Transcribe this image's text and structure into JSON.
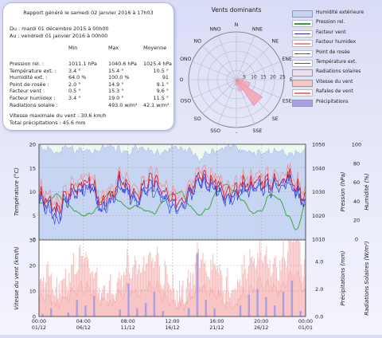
{
  "report": {
    "title": "Rapport généré le samedi 02 janvier 2016 à 17h03",
    "from": "Du : mardi 01 décembre 2015 à 00h00",
    "to": "Au : vendredi 01 janvier 2016 à 00h00",
    "columns": [
      "Min",
      "Max",
      "Moyenne"
    ],
    "rows": [
      {
        "label": "Pression rel. :",
        "min": "1011.1 hPa",
        "max": "1040.6 hPa",
        "avg": "1025.4 hPa"
      },
      {
        "label": "Température ext. :",
        "min": "3.4 °",
        "max": "15.4 °",
        "avg": "10.5 °"
      },
      {
        "label": "Humidité ext. :",
        "min": "64.0 %",
        "max": "100.0 %",
        "avg": "91"
      },
      {
        "label": "Point de rosée :",
        "min": "2.0 °",
        "max": "14.9 °",
        "avg": "9.1 °"
      },
      {
        "label": "Facteur vent :",
        "min": "0.5 °",
        "max": "15.3 °",
        "avg": "9.6 °"
      },
      {
        "label": "Facteur humidex :",
        "min": "3.4 °",
        "max": "19.0 °",
        "avg": "11.5 °"
      },
      {
        "label": "Radiations solaire :",
        "min": "",
        "max": "493.0 w/m²",
        "avg": "42.1 w/m²"
      }
    ],
    "wind_max": "Vitesse maximale du vent : 30.6 km/h",
    "rain_total": "Total précipitations : 45.6 mm"
  },
  "colors": {
    "humidity": "#b9c9ee",
    "pressure": "#33a033",
    "wind_factor": "#2a2ad8",
    "humidex": "#f08a8a",
    "dewpoint": "#3a4ef0",
    "temperature": "#d8202a",
    "solar": "#ece0ec",
    "wind_speed": "#f4b2b2",
    "gusts": "#f07a7a",
    "precip": "#aa9fe0",
    "rose": "#f4a8b6"
  },
  "wind_rose": {
    "title": "Vents dominants",
    "directions": [
      "N",
      "NNE",
      "NE",
      "ENE",
      "E",
      "ESE",
      "SE",
      "SSE",
      "S",
      "SSO",
      "SO",
      "OSO",
      "O",
      "ONO",
      "NO",
      "NNO"
    ],
    "rings": [
      "5",
      "10",
      "15",
      "20",
      "25"
    ],
    "dominant": "SE"
  },
  "legend": [
    {
      "label": "Humidité extérieure",
      "type": "fill",
      "color": "#c6d5f2"
    },
    {
      "label": "Pression rel.",
      "type": "line",
      "color": "#33a033"
    },
    {
      "label": "Facteur vent",
      "type": "line",
      "color": "#2a2ad8"
    },
    {
      "label": "Facteur humidex",
      "type": "line",
      "color": "#f08a8a"
    },
    {
      "label": "Point de rosée",
      "type": "line",
      "color": "#3a4ef0"
    },
    {
      "label": "Température ext.",
      "type": "line",
      "color": "#d8202a"
    },
    {
      "label": "Radiations solaires",
      "type": "fill",
      "color": "#ece0ec"
    },
    {
      "label": "Vitesse du vent",
      "type": "fill",
      "color": "#f8c4c4"
    },
    {
      "label": "Rafales de vent",
      "type": "line",
      "color": "#f07a7a"
    },
    {
      "label": "Précipitations",
      "type": "fill",
      "color": "#a99fe3"
    }
  ],
  "chart_data": [
    {
      "type": "line",
      "xlabels": [
        "01/12",
        "06/12",
        "11/12",
        "16/12",
        "21/12",
        "26/12",
        "01/01"
      ],
      "xlabels_top": [
        "00:00",
        "04:00",
        "08:00",
        "12:00",
        "16:00",
        "20:00",
        "00:00"
      ],
      "ylabel_left": "Température (°C)",
      "ylabel_right1": "Pression (hPa)",
      "ylabel_right2": "Humidité (%)",
      "ylim_temp": [
        0,
        20
      ],
      "yticks_temp": [
        "0",
        "5",
        "10",
        "15",
        "20"
      ],
      "ylim_pressure": [
        1010,
        1050
      ],
      "yticks_pressure": [
        "1010",
        "1020",
        "1030",
        "1040",
        "1050"
      ],
      "yticks_humidity": [
        "0",
        "20",
        "40",
        "60",
        "80",
        "100"
      ],
      "series": [
        {
          "name": "Température ext.",
          "values": [
            9.5,
            8,
            6,
            9,
            11,
            12,
            12,
            7,
            9,
            12.5,
            11,
            9,
            12,
            12.5,
            10,
            8,
            8.5,
            11,
            14,
            12.5,
            12,
            9.5,
            10,
            11.5,
            12,
            12.5,
            12,
            12.5,
            13.5,
            11,
            9
          ]
        },
        {
          "name": "Point de rosée",
          "values": [
            8,
            6.5,
            3.5,
            7.5,
            10,
            10.5,
            11,
            6,
            7.5,
            11,
            10,
            8,
            10.5,
            10,
            8.5,
            6,
            7,
            10,
            12.5,
            11,
            10.5,
            8,
            8.5,
            10,
            10.5,
            11,
            11,
            11.5,
            12,
            9.5,
            8
          ]
        },
        {
          "name": "Pression rel.",
          "values": [
            1025,
            1026,
            1029,
            1026,
            1022,
            1020,
            1021,
            1026,
            1030,
            1026,
            1023,
            1024,
            1022,
            1021,
            1026,
            1029,
            1030,
            1024,
            1020,
            1023,
            1030,
            1033,
            1030,
            1026,
            1021,
            1022,
            1029,
            1027,
            1020,
            1014,
            1025
          ]
        },
        {
          "name": "Humidité extérieure",
          "values": [
            97,
            95,
            90,
            98,
            94,
            93,
            91,
            96,
            98,
            95,
            90,
            96,
            94,
            92,
            90,
            97,
            96,
            93,
            84,
            90,
            94,
            97,
            99,
            92,
            91,
            90,
            93,
            94,
            88,
            92,
            95
          ]
        }
      ]
    },
    {
      "type": "area",
      "xlabels": [
        "01/12",
        "06/12",
        "11/12",
        "16/12",
        "21/12",
        "26/12",
        "01/01"
      ],
      "ylabel_left": "Vitesse du vent (km/h)",
      "ylabel_right1": "Précipitations (mm)",
      "ylabel_right2": "Radiations Solaires (W/m²)",
      "ylim_wind": [
        0,
        30
      ],
      "yticks_wind": [
        "0",
        "10",
        "20",
        "30"
      ],
      "yticks_precip": [
        "0.0",
        "2.0",
        "4.0"
      ],
      "series": [
        {
          "name": "Vitesse du vent",
          "values": [
            6,
            8,
            4,
            7,
            10,
            12,
            9,
            6,
            5,
            8,
            11,
            9,
            10,
            13,
            8,
            5,
            4,
            7,
            12,
            10,
            9,
            6,
            5,
            9,
            11,
            13,
            12,
            10,
            15,
            16,
            8
          ]
        },
        {
          "name": "Rafales de vent",
          "values": [
            14,
            16,
            9,
            15,
            20,
            22,
            18,
            12,
            10,
            16,
            21,
            18,
            20,
            24,
            16,
            11,
            9,
            15,
            23,
            20,
            18,
            12,
            10,
            18,
            21,
            24,
            22,
            19,
            27,
            30,
            16
          ]
        },
        {
          "name": "Précipitations",
          "values": [
            0.2,
            0.6,
            0,
            0.3,
            1.2,
            0.8,
            1.5,
            0,
            0,
            0.5,
            2.4,
            0.6,
            1.0,
            1.8,
            0.4,
            0,
            0,
            0.6,
            4.6,
            1.2,
            0.6,
            0,
            0,
            0.8,
            1.6,
            2.0,
            1.4,
            0.8,
            1.8,
            2.6,
            0.4
          ]
        }
      ]
    }
  ]
}
